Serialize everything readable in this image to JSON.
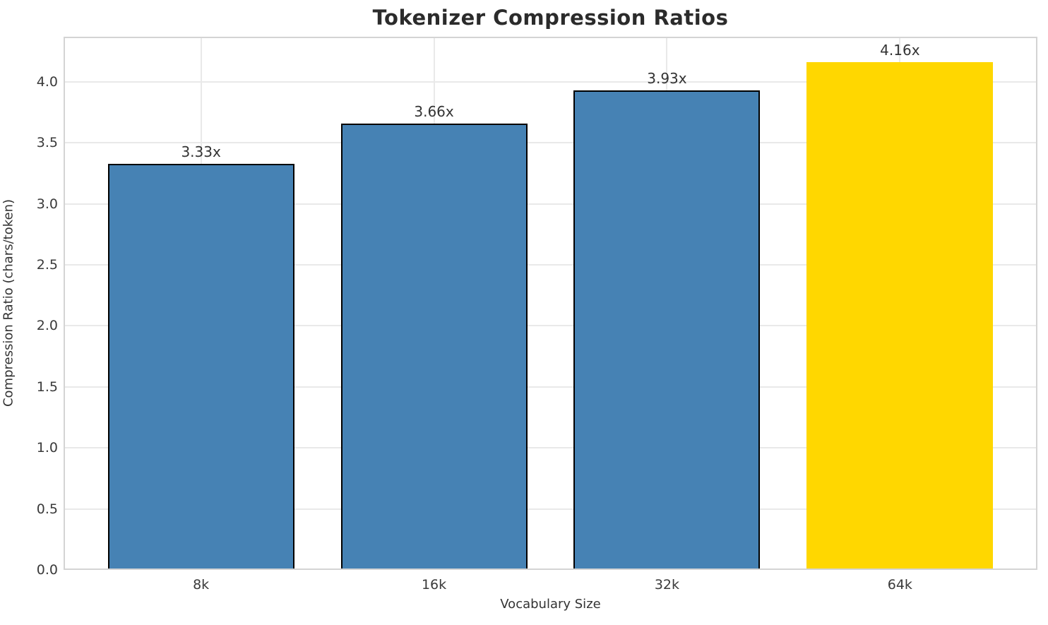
{
  "chart_data": {
    "type": "bar",
    "title": "Tokenizer Compression Ratios",
    "xlabel": "Vocabulary Size",
    "ylabel": "Compression Ratio (chars/token)",
    "categories": [
      "8k",
      "16k",
      "32k",
      "64k"
    ],
    "values": [
      3.33,
      3.66,
      3.93,
      4.16
    ],
    "bar_labels": [
      "3.33x",
      "3.66x",
      "3.93x",
      "4.16x"
    ],
    "bar_colors": [
      "#4682B4",
      "#4682B4",
      "#4682B4",
      "#FFD700"
    ],
    "bar_edge_colors": [
      "#000000",
      "#000000",
      "#000000",
      "none"
    ],
    "yticks": [
      0.0,
      0.5,
      1.0,
      1.5,
      2.0,
      2.5,
      3.0,
      3.5,
      4.0
    ],
    "ytick_labels": [
      "0.0",
      "0.5",
      "1.0",
      "1.5",
      "2.0",
      "2.5",
      "3.0",
      "3.5",
      "4.0"
    ],
    "ylim": [
      0,
      4.37
    ],
    "xlim": [
      -0.59,
      3.59
    ],
    "bar_width": 0.8,
    "grid": true,
    "legend": "none",
    "colors": {
      "grid": "#e9e9e9",
      "spine": "#d4d4d4",
      "tick_text": "#3a3a3a",
      "label_text": "#333333",
      "title_text": "#2b2b2b",
      "background": "#ffffff"
    }
  }
}
